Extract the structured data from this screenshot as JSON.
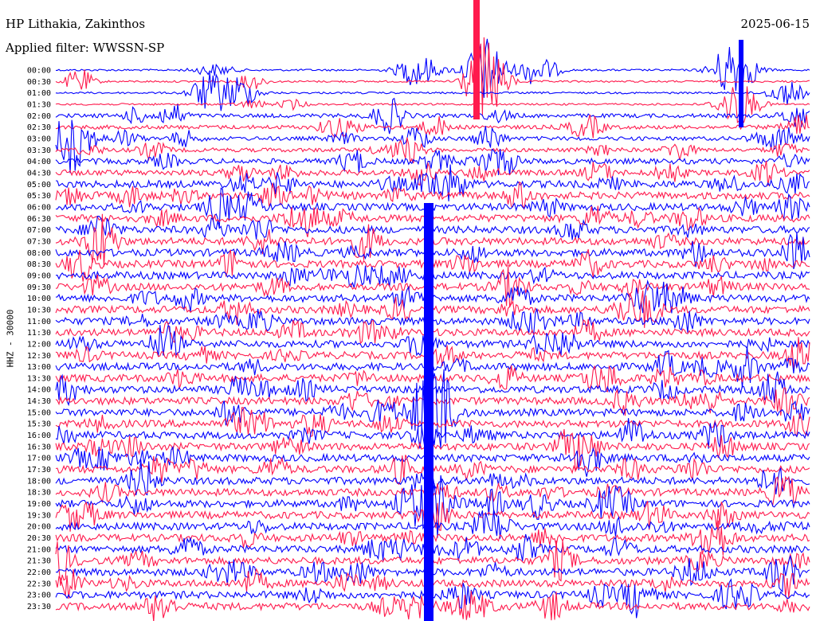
{
  "header": {
    "station": "HP Lithakia, Zakinthos",
    "filter": "Applied filter: WWSSN-SP",
    "date": "2025-06-15"
  },
  "channel_label": "HHZ - 30000",
  "colors": {
    "odd_trace": "#0000ff",
    "even_trace": "#ff1a4d",
    "text": "#000000"
  },
  "chart_data": {
    "type": "line",
    "title": "HP Lithakia, Zakinthos",
    "subtitle": "Applied filter: WWSSN-SP",
    "date": "2025-06-15",
    "ylabel": "HHZ - 30000",
    "row_labels": [
      "00:00",
      "00:30",
      "01:00",
      "01:30",
      "02:00",
      "02:30",
      "03:00",
      "03:30",
      "04:00",
      "04:30",
      "05:00",
      "05:30",
      "06:00",
      "06:30",
      "07:00",
      "07:30",
      "08:00",
      "08:30",
      "09:00",
      "09:30",
      "10:00",
      "10:30",
      "11:00",
      "11:30",
      "12:00",
      "12:30",
      "13:00",
      "13:30",
      "14:00",
      "14:30",
      "15:00",
      "15:30",
      "16:00",
      "16:30",
      "17:00",
      "17:30",
      "18:00",
      "18:30",
      "19:00",
      "19:30",
      "20:00",
      "20:30",
      "21:00",
      "21:30",
      "22:00",
      "22:30",
      "23:00",
      "23:30"
    ],
    "events": [
      {
        "row": 0,
        "x": 0.21,
        "amp": 0.5
      },
      {
        "row": 0,
        "x": 0.48,
        "amp": 1.5
      },
      {
        "row": 0,
        "x": 0.57,
        "amp": 3.0
      },
      {
        "row": 0,
        "x": 0.9,
        "amp": 3.0
      },
      {
        "row": 1,
        "x": 0.57,
        "amp": 4.0
      },
      {
        "row": 2,
        "x": 0.24,
        "amp": 1.5
      },
      {
        "row": 2,
        "x": 0.97,
        "amp": 1.0
      },
      {
        "row": 3,
        "x": 0.905,
        "amp": 2.0
      },
      {
        "row": 6,
        "x": 0.02,
        "amp": 2.5
      },
      {
        "row": 6,
        "x": 0.95,
        "amp": 0.8
      },
      {
        "row": 10,
        "x": 0.505,
        "amp": 1.2
      },
      {
        "row": 30,
        "x": 0.5,
        "amp": 5.0
      },
      {
        "row": 38,
        "x": 0.5,
        "amp": 3.0
      },
      {
        "row": 44,
        "x": 0.23,
        "amp": 1.0
      },
      {
        "row": 47,
        "x": 0.55,
        "amp": 1.2
      }
    ]
  }
}
